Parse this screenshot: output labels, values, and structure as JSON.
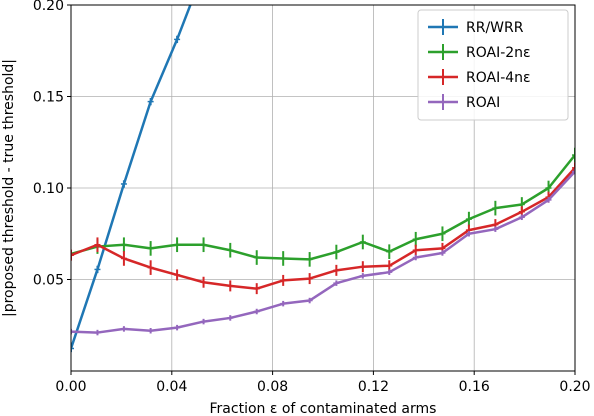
{
  "chart_data": {
    "type": "line",
    "xlabel": "Fraction ε of contaminated arms",
    "ylabel": "|proposed threshold - true threshold|",
    "xlim": [
      0.0,
      0.2
    ],
    "ylim": [
      0.0,
      0.2
    ],
    "x_ticks": [
      "0.00",
      "0.04",
      "0.08",
      "0.12",
      "0.16",
      "0.20"
    ],
    "x_tick_values": [
      0.0,
      0.04,
      0.08,
      0.12,
      0.16,
      0.2
    ],
    "y_ticks": [
      "0.05",
      "0.10",
      "0.15",
      "0.20"
    ],
    "y_tick_values": [
      0.05,
      0.1,
      0.15,
      0.2
    ],
    "grid": true,
    "legend_position": "top-right",
    "x": [
      0.0,
      0.0105,
      0.021,
      0.0316,
      0.0421,
      0.0526,
      0.0632,
      0.0737,
      0.0842,
      0.0947,
      0.1053,
      0.1158,
      0.1263,
      0.1368,
      0.1474,
      0.1579,
      0.1684,
      0.1789,
      0.1895,
      0.2
    ],
    "series": [
      {
        "name": "RR/WRR",
        "color": "#1f77b4",
        "x": [
          0.0,
          0.0105,
          0.021,
          0.0316,
          0.0421,
          0.0526
        ],
        "values": [
          0.0123,
          0.0555,
          0.1022,
          0.1472,
          0.1812,
          0.2187
        ],
        "errors": [
          0.002,
          0.002,
          0.002,
          0.002,
          0.002,
          0.002
        ]
      },
      {
        "name": "ROAI-2nε",
        "color": "#2ca02c",
        "values": [
          0.064,
          0.068,
          0.069,
          0.067,
          0.069,
          0.069,
          0.066,
          0.062,
          0.0615,
          0.061,
          0.065,
          0.0705,
          0.0652,
          0.072,
          0.075,
          0.083,
          0.089,
          0.091,
          0.1,
          0.118
        ],
        "errors": [
          0.002,
          0.004,
          0.004,
          0.004,
          0.004,
          0.004,
          0.004,
          0.004,
          0.004,
          0.004,
          0.004,
          0.004,
          0.004,
          0.004,
          0.004,
          0.004,
          0.004,
          0.004,
          0.004,
          0.004
        ]
      },
      {
        "name": "ROAI-4nε",
        "color": "#d62728",
        "values": [
          0.0633,
          0.069,
          0.0615,
          0.0565,
          0.0525,
          0.0485,
          0.0465,
          0.045,
          0.0495,
          0.0505,
          0.055,
          0.057,
          0.0575,
          0.066,
          0.067,
          0.077,
          0.08,
          0.087,
          0.095,
          0.111
        ],
        "errors": [
          0.003,
          0.004,
          0.004,
          0.004,
          0.003,
          0.003,
          0.003,
          0.003,
          0.003,
          0.003,
          0.003,
          0.003,
          0.003,
          0.003,
          0.003,
          0.003,
          0.003,
          0.003,
          0.003,
          0.003
        ]
      },
      {
        "name": "ROAI",
        "color": "#9467bd",
        "values": [
          0.0215,
          0.021,
          0.023,
          0.022,
          0.0237,
          0.027,
          0.029,
          0.0325,
          0.0368,
          0.0385,
          0.048,
          0.052,
          0.054,
          0.062,
          0.0645,
          0.075,
          0.0775,
          0.084,
          0.0935,
          0.109
        ],
        "errors": [
          0.0015,
          0.0015,
          0.0015,
          0.0015,
          0.0015,
          0.0015,
          0.0015,
          0.0015,
          0.0015,
          0.0015,
          0.0015,
          0.0015,
          0.0015,
          0.0015,
          0.0015,
          0.0015,
          0.0015,
          0.0015,
          0.0015,
          0.0015
        ]
      }
    ]
  }
}
